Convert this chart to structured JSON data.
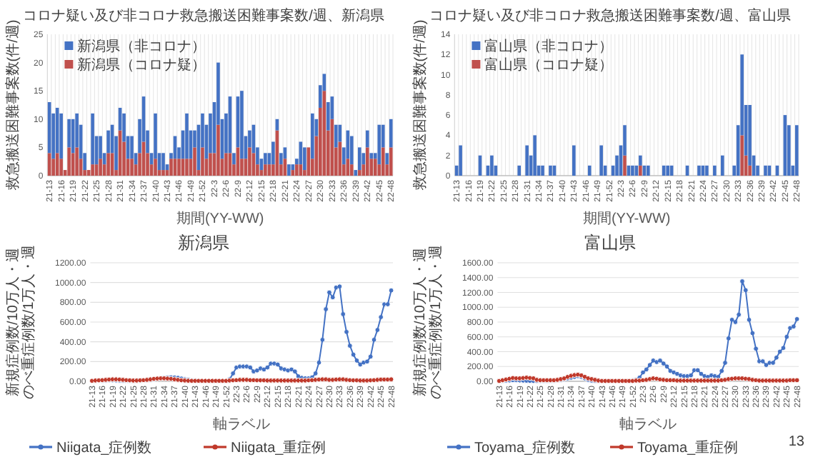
{
  "chart_data": [
    {
      "type": "bar",
      "title": "コロナ疑い及び非コロナ救急搬送困難事案数/週、新潟県",
      "ylabel": "救急搬送困難事案数(件/週)",
      "xlabel": "期間(YY-WW)",
      "stacked": true,
      "grid": "x",
      "legend": "top left",
      "ylim": [
        0,
        25
      ],
      "yticks": [
        0,
        5,
        10,
        15,
        20,
        25
      ],
      "categories": [
        "21-13",
        null,
        null,
        "21-16",
        null,
        null,
        "21-19",
        null,
        null,
        "21-22",
        null,
        null,
        "21-25",
        null,
        null,
        "21-28",
        null,
        null,
        "21-31",
        null,
        null,
        "21-34",
        null,
        null,
        "21-37",
        null,
        null,
        "21-40",
        null,
        null,
        "21-43",
        null,
        null,
        "21-46",
        null,
        null,
        "21-49",
        null,
        null,
        "21-52",
        null,
        null,
        "22-3",
        null,
        null,
        "22-6",
        null,
        null,
        "22-9",
        null,
        null,
        "22-12",
        null,
        null,
        "22-15",
        null,
        null,
        "22-18",
        null,
        null,
        "22-21",
        null,
        null,
        "22-24",
        null,
        null,
        "22-27",
        null,
        null,
        "22-30",
        null,
        null,
        "22-33",
        null,
        null,
        "22-36",
        null,
        null,
        "22-39",
        null,
        null,
        "22-42",
        null,
        null,
        "22-45",
        null,
        null,
        "22-48"
      ],
      "series": [
        {
          "name": "新潟県（コロナ疑）",
          "color": "#c0504d",
          "values": [
            4,
            3,
            4,
            3,
            1,
            5,
            4,
            5,
            3,
            1,
            1,
            2,
            2,
            3,
            2,
            4,
            4,
            1,
            8,
            6,
            3,
            3,
            2,
            4,
            6,
            4,
            2,
            3,
            1,
            1,
            1,
            3,
            3,
            3,
            3,
            3,
            3,
            5,
            1,
            5,
            3,
            4,
            4,
            9,
            3,
            4,
            4,
            2,
            5,
            3,
            3,
            5,
            4,
            2,
            1,
            2,
            2,
            2,
            8,
            2,
            3,
            0,
            1,
            2,
            2,
            1,
            5,
            3,
            7,
            12,
            15,
            8,
            10,
            5,
            6,
            2,
            3,
            2,
            0,
            1,
            2,
            5,
            3,
            3,
            2,
            5,
            2,
            5
          ]
        },
        {
          "name": "新潟県（非コロナ）",
          "color": "#4472c4",
          "values": [
            9,
            8,
            8,
            8,
            0,
            5,
            6,
            6,
            6,
            3,
            0,
            9,
            5,
            4,
            2,
            4,
            5,
            6,
            4,
            5,
            4,
            4,
            2,
            6,
            8,
            4,
            2,
            8,
            3,
            3,
            1,
            1,
            4,
            2,
            5,
            8,
            5,
            3,
            8,
            6,
            6,
            7,
            9,
            11,
            7,
            7,
            10,
            2,
            9,
            12,
            4,
            3,
            5,
            3,
            2,
            2,
            2,
            4,
            2,
            2,
            2,
            2,
            1,
            1,
            4,
            4,
            0,
            8,
            3,
            4,
            3,
            5,
            4,
            4,
            3,
            3,
            5,
            5,
            1,
            4,
            2,
            3,
            1,
            1,
            7,
            4,
            2,
            5
          ]
        }
      ]
    },
    {
      "type": "bar",
      "title": "コロナ疑い及び非コロナ救急搬送困難事案数/週、富山県",
      "ylabel": "救急搬送困難事案数(件/週)",
      "xlabel": "期間(YY-WW)",
      "stacked": true,
      "grid": "x",
      "legend": "top left",
      "ylim": [
        0,
        14
      ],
      "yticks": [
        0,
        2,
        4,
        6,
        8,
        10,
        12,
        14
      ],
      "categories": [
        "21-13",
        null,
        null,
        "21-16",
        null,
        null,
        "21-19",
        null,
        null,
        "21-22",
        null,
        null,
        "21-25",
        null,
        null,
        "21-28",
        null,
        null,
        "21-31",
        null,
        null,
        "21-34",
        null,
        null,
        "21-37",
        null,
        null,
        "21-40",
        null,
        null,
        "21-43",
        null,
        null,
        "21-46",
        null,
        null,
        "21-49",
        null,
        null,
        "21-52",
        null,
        null,
        "22-3",
        null,
        null,
        "22-6",
        null,
        null,
        "22-9",
        null,
        null,
        "22-12",
        null,
        null,
        "22-15",
        null,
        null,
        "22-18",
        null,
        null,
        "22-21",
        null,
        null,
        "22-24",
        null,
        null,
        "22-27",
        null,
        null,
        "22-30",
        null,
        null,
        "22-33",
        null,
        null,
        "22-36",
        null,
        null,
        "22-39",
        null,
        null,
        "22-42",
        null,
        null,
        "22-45",
        null,
        null,
        "22-48"
      ],
      "series": [
        {
          "name": "富山県（コロナ疑）",
          "color": "#c0504d",
          "values": [
            0,
            0,
            0,
            0,
            0,
            0,
            0,
            0,
            0,
            0,
            0,
            0,
            0,
            0,
            0,
            0,
            0,
            0,
            0,
            0,
            0,
            0,
            0,
            0,
            0,
            0,
            0,
            0,
            0,
            0,
            0,
            0,
            0,
            0,
            0,
            0,
            0,
            0,
            0,
            0,
            0,
            0,
            0,
            2,
            0,
            0,
            0,
            1,
            0,
            0,
            0,
            0,
            0,
            0,
            0,
            0,
            0,
            0,
            0,
            0,
            0,
            0,
            0,
            0,
            0,
            0,
            0,
            0,
            0,
            0,
            0,
            0,
            0,
            4,
            2,
            1,
            0,
            0,
            0,
            0,
            0,
            0,
            0,
            0,
            0,
            0,
            0,
            0
          ]
        },
        {
          "name": "富山県（非コロナ）",
          "color": "#4472c4",
          "values": [
            1,
            3,
            0,
            0,
            0,
            0,
            2,
            0,
            1,
            2,
            1,
            0,
            0,
            0,
            0,
            0,
            1,
            0,
            3,
            2,
            4,
            1,
            1,
            0,
            1,
            1,
            0,
            0,
            0,
            0,
            3,
            0,
            0,
            0,
            1,
            0,
            0,
            3,
            1,
            0,
            1,
            2,
            3,
            3,
            1,
            1,
            1,
            1,
            1,
            1,
            0,
            0,
            0,
            1,
            1,
            1,
            0,
            0,
            0,
            1,
            0,
            0,
            1,
            1,
            1,
            0,
            1,
            0,
            2,
            0,
            0,
            1,
            5,
            8,
            5,
            6,
            2,
            1,
            0,
            1,
            1,
            0,
            1,
            0,
            6,
            5,
            1,
            5
          ]
        }
      ]
    },
    {
      "type": "line",
      "title": "新潟県",
      "ylabel": "新規症例数/10万人・週のべ重症例数/1万人・週",
      "xlabel": "軸ラベル",
      "grid": "y",
      "legend": "bottom",
      "marker": "circle",
      "ylim": [
        0,
        1200
      ],
      "yticks": [
        {
          "value": 0,
          "label": "0.00"
        },
        {
          "value": 200,
          "label": "200.00"
        },
        {
          "value": 400,
          "label": "400.00"
        },
        {
          "value": 600,
          "label": "600.00"
        },
        {
          "value": 800,
          "label": "800.00"
        },
        {
          "value": 1000,
          "label": "1000.00"
        },
        {
          "value": 1200,
          "label": "1200.00"
        }
      ],
      "categories": [
        "21-13",
        null,
        null,
        "21-16",
        null,
        null,
        "21-19",
        null,
        null,
        "21-22",
        null,
        null,
        "21-25",
        null,
        null,
        "21-28",
        null,
        null,
        "21-31",
        null,
        null,
        "21-34",
        null,
        null,
        "21-37",
        null,
        null,
        "21-40",
        null,
        null,
        "21-43",
        null,
        null,
        "21-46",
        null,
        null,
        "21-49",
        null,
        null,
        "21-52",
        null,
        null,
        "22-3",
        null,
        null,
        "22-6",
        null,
        null,
        "22-9",
        null,
        null,
        "22-12",
        null,
        null,
        "22-15",
        null,
        null,
        "22-18",
        null,
        null,
        "22-21",
        null,
        null,
        "22-24",
        null,
        null,
        "22-27",
        null,
        null,
        "22-30",
        null,
        null,
        "22-33",
        null,
        null,
        "22-36",
        null,
        null,
        "22-39",
        null,
        null,
        "22-42",
        null,
        null,
        "22-45",
        null,
        null,
        "22-48"
      ],
      "series": [
        {
          "name": "Niigata_症例数",
          "color": "#4472c4",
          "values": [
            null,
            null,
            null,
            8,
            9,
            10,
            10,
            9,
            8,
            7,
            6,
            6,
            7,
            8,
            8,
            10,
            12,
            15,
            20,
            25,
            30,
            35,
            38,
            40,
            38,
            35,
            28,
            20,
            15,
            10,
            8,
            6,
            5,
            5,
            5,
            4,
            4,
            4,
            5,
            5,
            20,
            80,
            140,
            150,
            150,
            150,
            140,
            100,
            110,
            130,
            120,
            140,
            180,
            180,
            170,
            130,
            120,
            110,
            120,
            100,
            50,
            35,
            30,
            30,
            40,
            80,
            190,
            420,
            730,
            900,
            850,
            950,
            960,
            680,
            500,
            360,
            270,
            210,
            170,
            190,
            200,
            250,
            420,
            520,
            650,
            780,
            780,
            920
          ]
        },
        {
          "name": "Niigata_重症例",
          "color": "#c0392b",
          "values": [
            5,
            8,
            10,
            12,
            15,
            18,
            20,
            20,
            18,
            15,
            12,
            10,
            8,
            8,
            10,
            12,
            15,
            20,
            25,
            28,
            30,
            30,
            28,
            25,
            20,
            15,
            10,
            8,
            6,
            5,
            5,
            5,
            5,
            5,
            5,
            5,
            5,
            5,
            5,
            5,
            8,
            10,
            12,
            15,
            15,
            15,
            12,
            12,
            10,
            10,
            10,
            8,
            8,
            8,
            8,
            8,
            8,
            8,
            8,
            8,
            8,
            8,
            8,
            10,
            12,
            15,
            18,
            20,
            20,
            15,
            15,
            18,
            20,
            20,
            15,
            12,
            10,
            10,
            8,
            8,
            8,
            10,
            12,
            15,
            18,
            18,
            18,
            20
          ]
        }
      ]
    },
    {
      "type": "line",
      "title": "富山県",
      "ylabel": "新規症例数/10万人・週のべ重症例数/1万人・週",
      "xlabel": "軸ラベル",
      "grid": "y",
      "legend": "bottom",
      "marker": "circle",
      "ylim": [
        0,
        1600
      ],
      "yticks": [
        {
          "value": 0,
          "label": "0.00"
        },
        {
          "value": 200,
          "label": "200.00"
        },
        {
          "value": 400,
          "label": "400.00"
        },
        {
          "value": 600,
          "label": "600.00"
        },
        {
          "value": 800,
          "label": "800.00"
        },
        {
          "value": 1000,
          "label": "1000.00"
        },
        {
          "value": 1200,
          "label": "1200.00"
        },
        {
          "value": 1400,
          "label": "1400.00"
        },
        {
          "value": 1600,
          "label": "1600.00"
        }
      ],
      "annotations": [
        "13"
      ],
      "categories": [
        "21-13",
        null,
        null,
        "21-16",
        null,
        null,
        "21-19",
        null,
        null,
        "21-22",
        null,
        null,
        "21-25",
        null,
        null,
        "21-28",
        null,
        null,
        "21-31",
        null,
        null,
        "21-34",
        null,
        null,
        "21-37",
        null,
        null,
        "21-40",
        null,
        null,
        "21-43",
        null,
        null,
        "21-46",
        null,
        null,
        "21-49",
        null,
        null,
        "21-52",
        null,
        null,
        "22-3",
        null,
        null,
        "22-6",
        null,
        null,
        "22-9",
        null,
        null,
        "22-12",
        null,
        null,
        "22-15",
        null,
        null,
        "22-18",
        null,
        null,
        "22-21",
        null,
        null,
        "22-24",
        null,
        null,
        "22-27",
        null,
        null,
        "22-30",
        null,
        null,
        "22-33",
        null,
        null,
        "22-36",
        null,
        null,
        "22-39",
        null,
        null,
        "22-42",
        null,
        null,
        "22-45",
        null,
        null,
        "22-48"
      ],
      "series": [
        {
          "name": "Toyama_症例数",
          "color": "#4472c4",
          "values": [
            5,
            8,
            10,
            12,
            15,
            15,
            12,
            10,
            8,
            5,
            5,
            5,
            5,
            5,
            5,
            8,
            10,
            15,
            20,
            30,
            40,
            50,
            60,
            70,
            60,
            40,
            20,
            10,
            5,
            5,
            5,
            5,
            5,
            5,
            5,
            5,
            5,
            5,
            5,
            10,
            20,
            50,
            120,
            160,
            220,
            280,
            260,
            280,
            240,
            200,
            140,
            120,
            100,
            80,
            70,
            70,
            80,
            150,
            150,
            100,
            70,
            60,
            80,
            70,
            60,
            140,
            250,
            580,
            830,
            800,
            900,
            1350,
            1230,
            830,
            650,
            440,
            270,
            270,
            220,
            250,
            250,
            320,
            400,
            450,
            600,
            720,
            740,
            840
          ]
        },
        {
          "name": "Toyama_重症例",
          "color": "#c0392b",
          "values": [
            5,
            15,
            25,
            35,
            45,
            40,
            40,
            45,
            50,
            45,
            40,
            20,
            15,
            15,
            15,
            15,
            15,
            20,
            30,
            40,
            60,
            75,
            85,
            90,
            80,
            60,
            40,
            30,
            20,
            10,
            5,
            5,
            5,
            5,
            5,
            5,
            5,
            5,
            5,
            5,
            10,
            10,
            15,
            20,
            30,
            40,
            35,
            25,
            20,
            15,
            15,
            15,
            10,
            10,
            10,
            10,
            10,
            10,
            10,
            10,
            10,
            10,
            10,
            10,
            10,
            15,
            20,
            30,
            35,
            40,
            40,
            40,
            35,
            30,
            20,
            15,
            10,
            10,
            10,
            10,
            10,
            10,
            10,
            10,
            10,
            15,
            15,
            15
          ]
        }
      ]
    }
  ]
}
